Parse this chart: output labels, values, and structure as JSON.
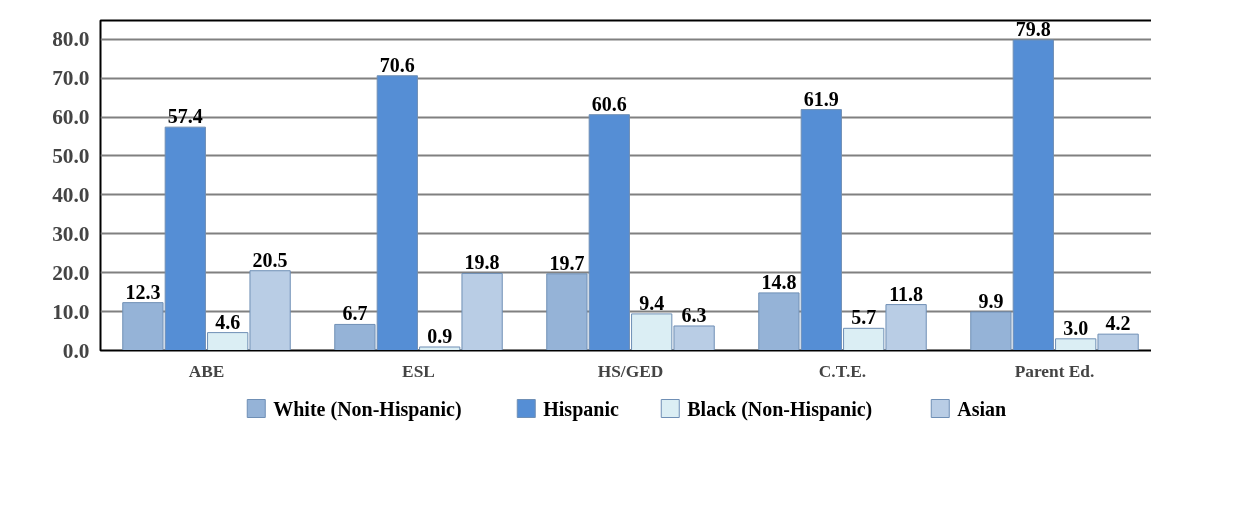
{
  "chart_data": {
    "type": "bar",
    "categories": [
      "ABE",
      "ESL",
      "HS/GED",
      "C.T.E.",
      "Parent Ed."
    ],
    "series": [
      {
        "name": "White (Non-Hispanic)",
        "color": "#95b3d7",
        "values": [
          12.3,
          6.7,
          19.7,
          14.8,
          9.9
        ],
        "value_labels": [
          "12.3",
          "6.7",
          "19.7",
          "14.8",
          "9.9"
        ]
      },
      {
        "name": "Hispanic",
        "color": "#558ed5",
        "values": [
          57.4,
          70.6,
          60.6,
          61.9,
          79.8
        ],
        "value_labels": [
          "57.4",
          "70.6",
          "60.6",
          "61.9",
          "79.8"
        ]
      },
      {
        "name": "Black (Non-Hispanic)",
        "color": "#dbeef4",
        "values": [
          4.6,
          0.9,
          9.4,
          5.7,
          3.0
        ],
        "value_labels": [
          "4.6",
          "0.9",
          "9.4",
          "5.7",
          "3.0"
        ]
      },
      {
        "name": "Asian",
        "color": "#b9cde5",
        "values": [
          20.5,
          19.8,
          6.3,
          11.8,
          4.2
        ],
        "value_labels": [
          "20.5",
          "19.8",
          "6.3",
          "11.8",
          "4.2"
        ]
      }
    ],
    "ylim": [
      0,
      80
    ],
    "yticks": [
      {
        "value": 0,
        "label": "0.0"
      },
      {
        "value": 10,
        "label": "10.0"
      },
      {
        "value": 20,
        "label": "20.0"
      },
      {
        "value": 30,
        "label": "30.0"
      },
      {
        "value": 40,
        "label": "40.0"
      },
      {
        "value": 50,
        "label": "50.0"
      },
      {
        "value": 60,
        "label": "60.0"
      },
      {
        "value": 70,
        "label": "70.0"
      },
      {
        "value": 80,
        "label": "80.0"
      }
    ],
    "grid": "y",
    "legend": "bottom"
  }
}
